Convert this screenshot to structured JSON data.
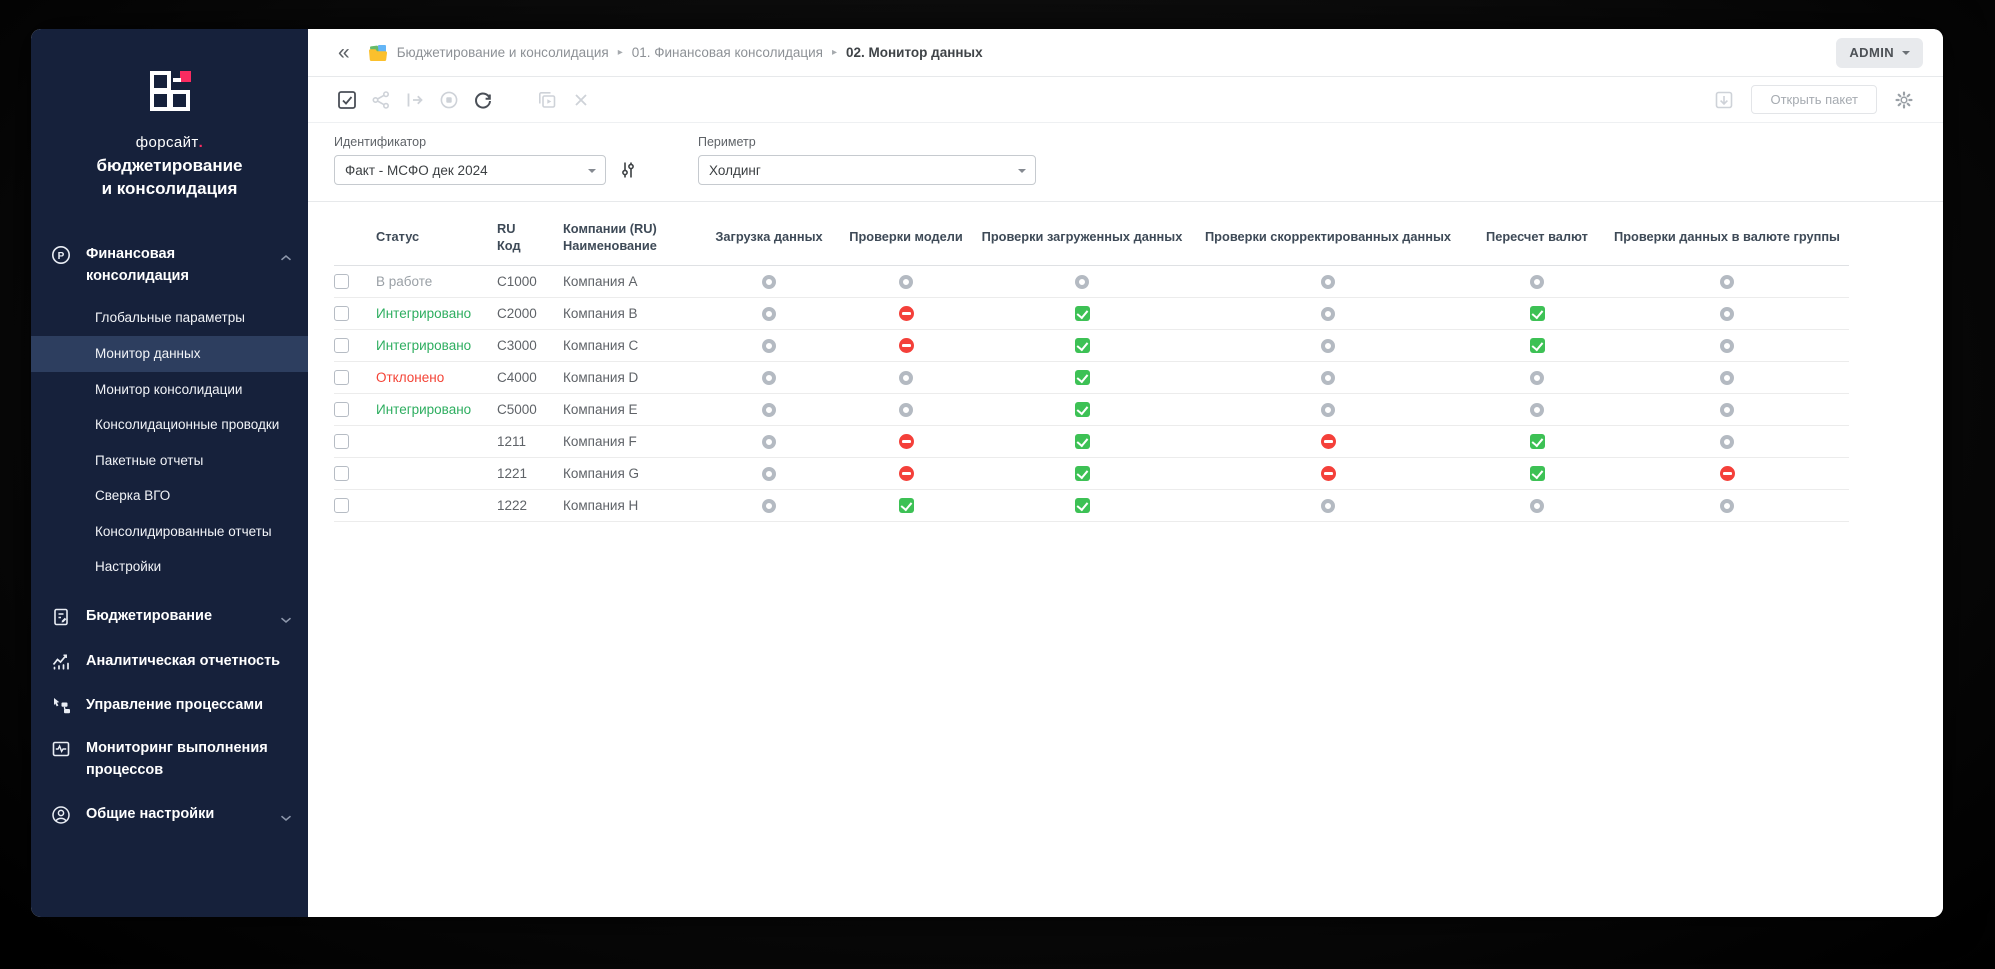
{
  "app": {
    "user_menu_label": "ADMIN"
  },
  "brand": {
    "wordmark": "форсайт",
    "wordmark_dot": ".",
    "product_line1": "бюджетирование",
    "product_line2": "и консолидация"
  },
  "sidebar": {
    "sections": [
      {
        "label": "Финансовая консолидация",
        "icon": "p-circle-icon",
        "state": "expanded",
        "children": [
          {
            "label": "Глобальные параметры",
            "active": false
          },
          {
            "label": "Монитор данных",
            "active": true
          },
          {
            "label": "Монитор консолидации",
            "active": false
          },
          {
            "label": "Консолидационные проводки",
            "active": false
          },
          {
            "label": "Пакетные отчеты",
            "active": false
          },
          {
            "label": "Сверка ВГО",
            "active": false
          },
          {
            "label": "Консолидированные отчеты",
            "active": false
          },
          {
            "label": "Настройки",
            "active": false
          }
        ]
      },
      {
        "label": "Бюджетирование",
        "icon": "budget-document-icon",
        "state": "collapsed"
      },
      {
        "label": "Аналитическая отчетность",
        "icon": "analytics-chart-icon",
        "state": "plain"
      },
      {
        "label": "Управление процессами",
        "icon": "process-flow-icon",
        "state": "plain"
      },
      {
        "label": "Мониторинг выполнения процессов",
        "icon": "process-monitor-icon",
        "state": "plain"
      },
      {
        "label": "Общие настройки",
        "icon": "user-circle-icon",
        "state": "collapsed"
      }
    ]
  },
  "breadcrumb": {
    "items": [
      "Бюджетирование и консолидация",
      "01. Финансовая консолидация",
      "02. Монитор данных"
    ]
  },
  "toolbar": {
    "buttons": [
      {
        "name": "select-checkbox",
        "enabled": true
      },
      {
        "name": "share",
        "enabled": false
      },
      {
        "name": "export",
        "enabled": false
      },
      {
        "name": "stop",
        "enabled": false
      },
      {
        "name": "refresh",
        "enabled": true
      },
      {
        "name": "open-in-window",
        "enabled": false
      },
      {
        "name": "close",
        "enabled": false
      }
    ],
    "open_package_label": "Открыть пакет"
  },
  "filters": {
    "identifier": {
      "label": "Идентификатор",
      "value": "Факт - МСФО дек 2024"
    },
    "perimeter": {
      "label": "Периметр",
      "value": "Холдинг"
    }
  },
  "table": {
    "columns": [
      "Статус",
      "RU\nКод",
      "Компании (RU)\nНаименование",
      "Загрузка данных",
      "Проверки модели",
      "Проверки загруженных данных",
      "Проверки скорректированных данных",
      "Пересчет валют",
      "Проверки данных в валюте группы"
    ],
    "rows": [
      {
        "status": "В работе",
        "status_type": "progress",
        "code": "C1000",
        "name": "Компания A",
        "checks": [
          "pending",
          "pending",
          "pending",
          "pending",
          "pending",
          "pending"
        ]
      },
      {
        "status": "Интегрировано",
        "status_type": "integrated",
        "code": "C2000",
        "name": "Компания B",
        "checks": [
          "pending",
          "error",
          "ok",
          "pending",
          "ok",
          "pending"
        ]
      },
      {
        "status": "Интегрировано",
        "status_type": "integrated",
        "code": "C3000",
        "name": "Компания C",
        "checks": [
          "pending",
          "error",
          "ok",
          "pending",
          "ok",
          "pending"
        ]
      },
      {
        "status": "Отклонено",
        "status_type": "rejected",
        "code": "C4000",
        "name": "Компания D",
        "checks": [
          "pending",
          "pending",
          "ok",
          "pending",
          "pending",
          "pending"
        ]
      },
      {
        "status": "Интегрировано",
        "status_type": "integrated",
        "code": "C5000",
        "name": "Компания E",
        "checks": [
          "pending",
          "pending",
          "ok",
          "pending",
          "pending",
          "pending"
        ]
      },
      {
        "status": "",
        "status_type": "none",
        "code": "1211",
        "name": "Компания F",
        "checks": [
          "pending",
          "error",
          "ok",
          "error",
          "ok",
          "pending"
        ]
      },
      {
        "status": "",
        "status_type": "none",
        "code": "1221",
        "name": "Компания G",
        "checks": [
          "pending",
          "error",
          "ok",
          "error",
          "ok",
          "error"
        ]
      },
      {
        "status": "",
        "status_type": "none",
        "code": "1222",
        "name": "Компания H",
        "checks": [
          "pending",
          "ok",
          "ok",
          "pending",
          "pending",
          "pending"
        ]
      }
    ]
  },
  "colors": {
    "accent_pink": "#f92b60",
    "sidebar_bg": "#16213b",
    "sidebar_active_bg": "#2d3e5f",
    "check_ok": "#3dc155",
    "check_error": "#f4403a",
    "check_pending": "#b4bac2",
    "status_integrated": "#2eae60",
    "status_rejected": "#f44336",
    "status_progress": "#9aa0a6"
  }
}
